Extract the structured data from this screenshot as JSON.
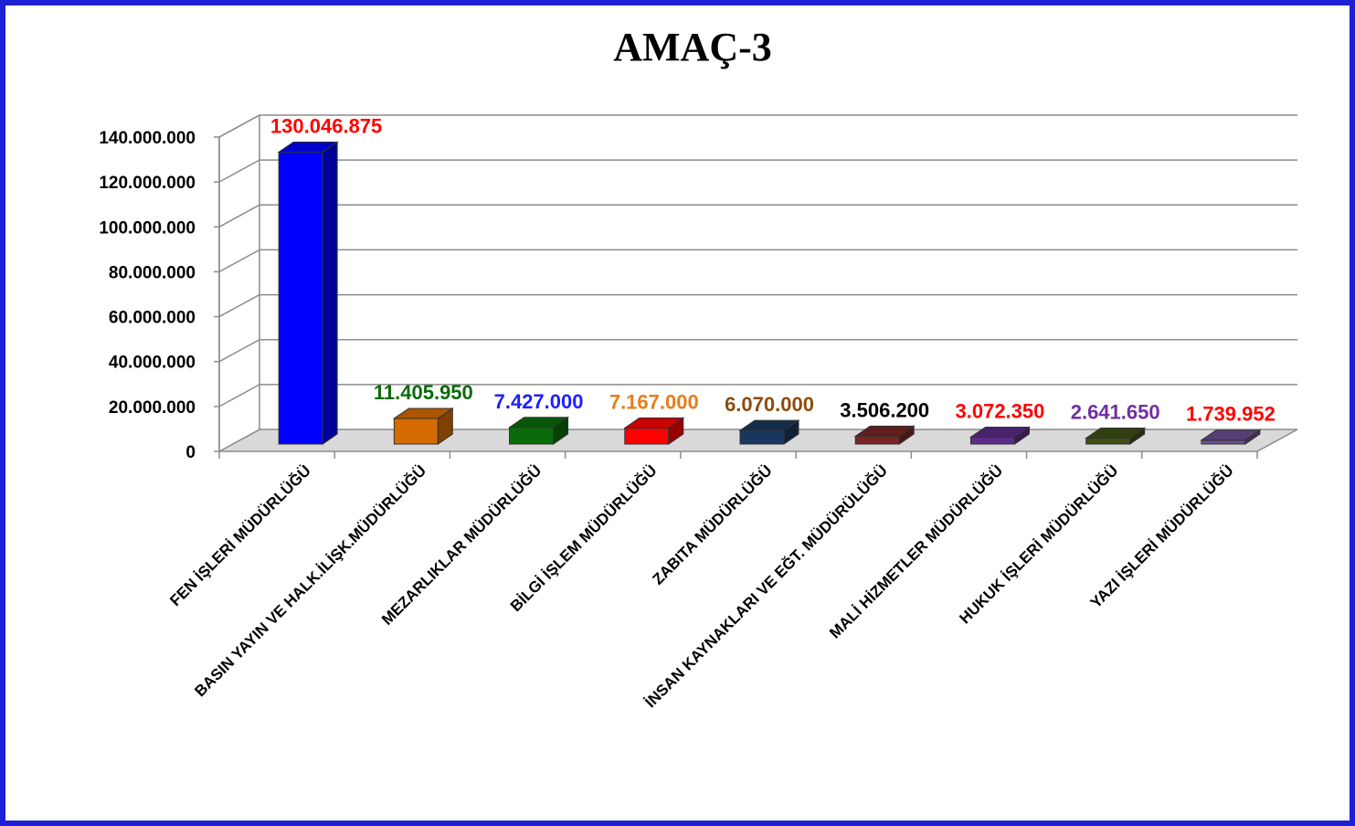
{
  "chart_data": {
    "type": "bar",
    "title": "AMAÇ-3",
    "xlabel": "",
    "ylabel": "",
    "ylim": [
      0,
      140000000
    ],
    "yticks": [
      0,
      20000000,
      40000000,
      60000000,
      80000000,
      100000000,
      120000000,
      140000000
    ],
    "ytick_labels": [
      "0",
      "20.000.000",
      "40.000.000",
      "60.000.000",
      "80.000.000",
      "100.000.000",
      "120.000.000",
      "140.000.000"
    ],
    "grid": true,
    "categories": [
      "FEN İŞLERİ MÜDÜRLÜĞÜ",
      "BASIN YAYIN VE HALK.İLİŞK.MÜDÜRLÜĞÜ",
      "MEZARLIKLAR MÜDÜRLÜĞÜ",
      "BİLGİ İŞLEM MÜDÜRLÜĞÜ",
      "ZABITA MÜDÜRLÜĞÜ",
      "İNSAN KAYNAKLARI VE EĞT. MÜDÜRÜLÜĞÜ",
      "MALİ HİZMETLER MÜDÜRLÜĞÜ",
      "HUKUK İŞLERİ MÜDÜRLÜĞÜ",
      "YAZI İŞLERİ MÜDÜRLÜĞÜ"
    ],
    "values": [
      130046875,
      11405950,
      7427000,
      7167000,
      6070000,
      3506200,
      3072350,
      2641650,
      1739952
    ],
    "value_labels": [
      "130.046.875",
      "11.405.950",
      "7.427.000",
      "7.167.000",
      "6.070.000",
      "3.506.200",
      "3.072.350",
      "2.641.650",
      "1.739.952"
    ],
    "bar_colors": [
      "#0000ff",
      "#d46a00",
      "#0a6b0a",
      "#ff0000",
      "#17375e",
      "#7a2424",
      "#5b2c8a",
      "#3d4f12",
      "#6a4f8f"
    ],
    "label_colors": [
      "#ff0000",
      "#0a6b0a",
      "#1f1fff",
      "#e87d19",
      "#8a4d0f",
      "#000000",
      "#ff0000",
      "#7030a0",
      "#ff0000"
    ]
  }
}
